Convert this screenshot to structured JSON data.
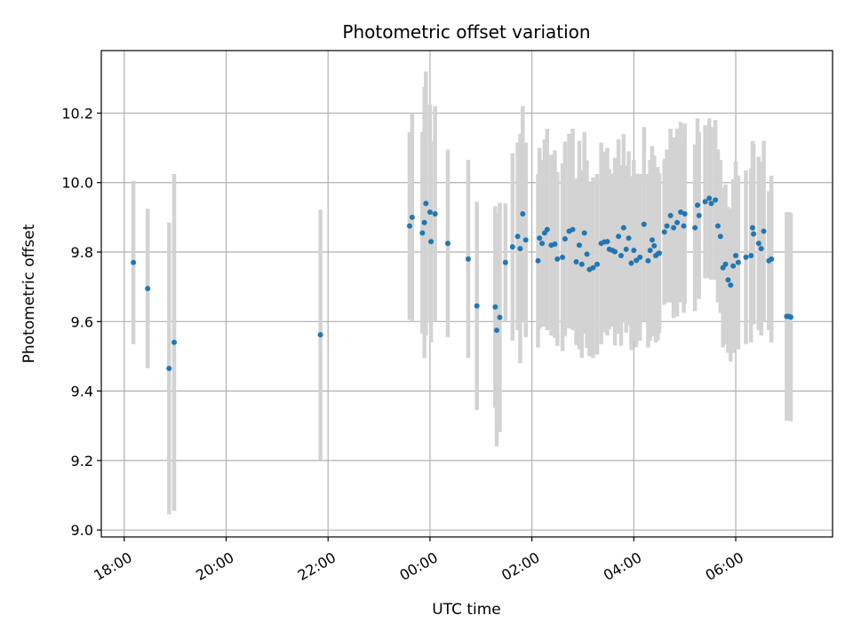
{
  "chart_data": {
    "type": "scatter",
    "title": "Photometric offset variation",
    "xlabel": "UTC time",
    "ylabel": "Photometric offset",
    "grid": true,
    "legend": "none",
    "x_units": "hours after 18:00 UTC",
    "xlim": [
      -0.45,
      13.9
    ],
    "ylim": [
      8.98,
      10.38
    ],
    "x_ticks": [
      {
        "value": 0,
        "label": "18:00"
      },
      {
        "value": 2,
        "label": "20:00"
      },
      {
        "value": 4,
        "label": "22:00"
      },
      {
        "value": 6,
        "label": "00:00"
      },
      {
        "value": 8,
        "label": "02:00"
      },
      {
        "value": 10,
        "label": "04:00"
      },
      {
        "value": 12,
        "label": "06:00"
      }
    ],
    "y_ticks": [
      {
        "value": 9.0,
        "label": "9.0"
      },
      {
        "value": 9.2,
        "label": "9.2"
      },
      {
        "value": 9.4,
        "label": "9.4"
      },
      {
        "value": 9.6,
        "label": "9.6"
      },
      {
        "value": 9.8,
        "label": "9.8"
      },
      {
        "value": 10.0,
        "label": "10.0"
      },
      {
        "value": 10.2,
        "label": "10.2"
      }
    ],
    "colors": {
      "points": "#1f77b4",
      "errorbars": "#d3d3d3",
      "grid": "#b0b0b0"
    },
    "series": [
      {
        "x": [
          0.18,
          0.46,
          0.88,
          0.98,
          3.85,
          5.6,
          5.65,
          5.85,
          5.89,
          5.92,
          6.0,
          6.02,
          6.1,
          6.35,
          6.75,
          6.92,
          7.28,
          7.31,
          7.37,
          7.48,
          7.62,
          7.72,
          7.77,
          7.82,
          7.88,
          8.12,
          8.15,
          8.2,
          8.25,
          8.3,
          8.38,
          8.45,
          8.5,
          8.6,
          8.65,
          8.73,
          8.8,
          8.87,
          8.93,
          8.98,
          9.03,
          9.08,
          9.13,
          9.2,
          9.28,
          9.36,
          9.42,
          9.48,
          9.52,
          9.58,
          9.63,
          9.7,
          9.75,
          9.8,
          9.85,
          9.9,
          9.95,
          10.0,
          10.05,
          10.12,
          10.2,
          10.28,
          10.32,
          10.36,
          10.4,
          10.43,
          10.47,
          10.5,
          10.6,
          10.65,
          10.72,
          10.78,
          10.85,
          10.92,
          10.98,
          11.0,
          11.2,
          11.25,
          11.28,
          11.4,
          11.48,
          11.52,
          11.6,
          11.65,
          11.7,
          11.75,
          11.8,
          11.85,
          11.9,
          11.95,
          12.0,
          12.05,
          12.2,
          12.3,
          12.33,
          12.35,
          12.45,
          12.5,
          12.55
        ],
        "y": [
          9.77,
          9.695,
          9.465,
          9.54,
          9.562,
          9.875,
          9.9,
          9.855,
          9.885,
          9.94,
          9.915,
          9.83,
          9.91,
          9.825,
          9.78,
          9.645,
          9.642,
          9.575,
          9.612,
          9.77,
          9.815,
          9.845,
          9.81,
          9.91,
          9.835,
          9.775,
          9.84,
          9.825,
          9.855,
          9.865,
          9.82,
          9.823,
          9.78,
          9.785,
          9.838,
          9.86,
          9.865,
          9.772,
          9.82,
          9.765,
          9.855,
          9.794,
          9.75,
          9.755,
          9.765,
          9.825,
          9.829,
          9.83,
          9.808,
          9.805,
          9.801,
          9.845,
          9.79,
          9.87,
          9.808,
          9.84,
          9.768,
          9.805,
          9.776,
          9.785,
          9.88,
          9.775,
          9.805,
          9.835,
          9.818,
          9.79,
          9.795,
          9.797,
          9.858,
          9.875,
          9.905,
          9.87,
          9.885,
          9.915,
          9.875,
          9.91,
          9.87,
          9.935,
          9.905,
          9.945,
          9.955,
          9.94,
          9.95,
          9.875,
          9.845,
          9.755,
          9.765,
          9.72,
          9.705,
          9.76,
          9.79,
          9.77,
          9.785,
          9.79,
          9.87,
          9.852,
          9.825,
          9.81,
          9.86
        ],
        "yerr": [
          0.235,
          0.23,
          0.42,
          0.485,
          0.36,
          0.27,
          0.3,
          0.29,
          0.39,
          0.38,
          0.31,
          0.29,
          0.31,
          0.27,
          0.285,
          0.3,
          0.29,
          0.335,
          0.33,
          0.17,
          0.27,
          0.27,
          0.33,
          0.31,
          0.28,
          0.25,
          0.26,
          0.24,
          0.27,
          0.29,
          0.26,
          0.27,
          0.25,
          0.27,
          0.28,
          0.28,
          0.29,
          0.24,
          0.3,
          0.27,
          0.29,
          0.27,
          0.25,
          0.26,
          0.26,
          0.29,
          0.26,
          0.27,
          0.23,
          0.22,
          0.27,
          0.28,
          0.26,
          0.27,
          0.24,
          0.25,
          0.25,
          0.26,
          0.25,
          0.24,
          0.28,
          0.25,
          0.26,
          0.27,
          0.26,
          0.25,
          0.25,
          0.23,
          0.21,
          0.22,
          0.25,
          0.26,
          0.27,
          0.26,
          0.25,
          0.26,
          0.24,
          0.25,
          0.24,
          0.22,
          0.23,
          0.22,
          0.23,
          0.22,
          0.22,
          0.23,
          0.23,
          0.21,
          0.22,
          0.25,
          0.27,
          0.25,
          0.25,
          0.25,
          0.25,
          0.26,
          0.25,
          0.25,
          0.26
        ]
      },
      {
        "x": [
          12.65,
          12.7,
          13.0,
          13.04,
          13.08
        ],
        "y": [
          9.775,
          9.78,
          9.615,
          9.615,
          9.613
        ],
        "yerr": [
          0.2,
          0.24,
          0.3,
          0.3,
          0.3
        ]
      }
    ]
  }
}
